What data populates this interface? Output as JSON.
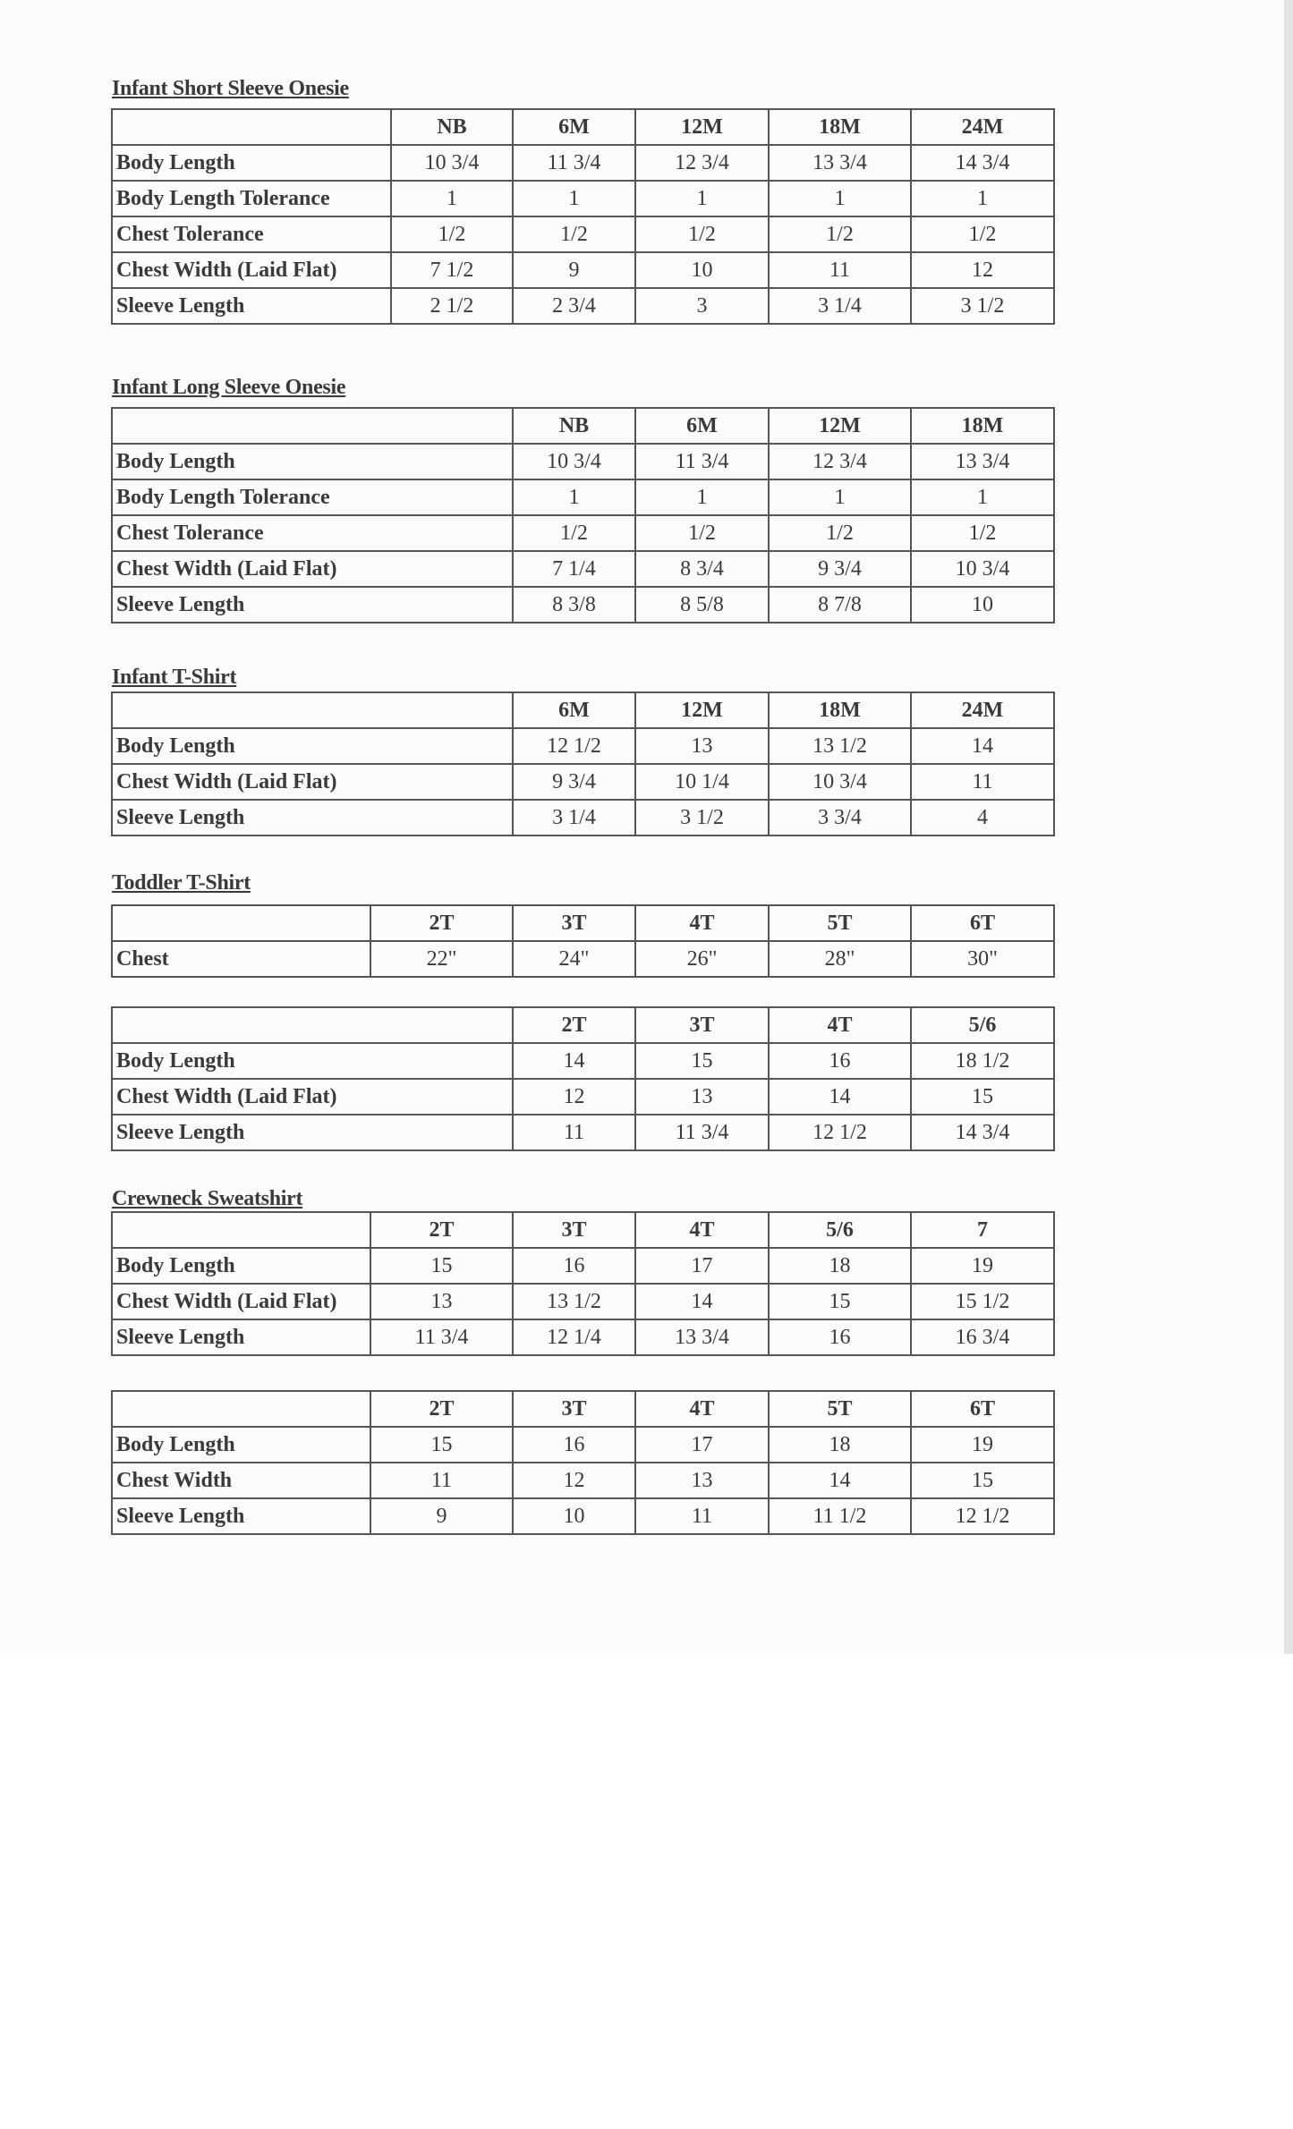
{
  "sections": [
    {
      "title": "Infant Short Sleeve Onesie",
      "tables": [
        {
          "sizes": [
            "NB",
            "6M",
            "12M",
            "18M",
            "24M"
          ],
          "rows": [
            {
              "label": "Body Length",
              "values": [
                "10 3/4",
                "11 3/4",
                "12 3/4",
                "13 3/4",
                "14 3/4"
              ]
            },
            {
              "label": "Body Length Tolerance",
              "values": [
                "1",
                "1",
                "1",
                "1",
                "1"
              ]
            },
            {
              "label": "Chest Tolerance",
              "values": [
                "1/2",
                "1/2",
                "1/2",
                "1/2",
                "1/2"
              ]
            },
            {
              "label": "Chest Width (Laid Flat)",
              "values": [
                "7 1/2",
                "9",
                "10",
                "11",
                "12"
              ]
            },
            {
              "label": "Sleeve Length",
              "values": [
                "2 1/2",
                "2 3/4",
                "3",
                "3 1/4",
                "3 1/2"
              ]
            }
          ]
        }
      ]
    },
    {
      "title": "Infant Long Sleeve Onesie",
      "tables": [
        {
          "sizes": [
            "NB",
            "6M",
            "12M",
            "18M"
          ],
          "rows": [
            {
              "label": "Body Length",
              "values": [
                "10 3/4",
                "11 3/4",
                "12 3/4",
                "13 3/4"
              ]
            },
            {
              "label": "Body Length Tolerance",
              "values": [
                "1",
                "1",
                "1",
                "1"
              ]
            },
            {
              "label": "Chest Tolerance",
              "values": [
                "1/2",
                "1/2",
                "1/2",
                "1/2"
              ]
            },
            {
              "label": "Chest Width (Laid Flat)",
              "values": [
                "7 1/4",
                "8 3/4",
                "9 3/4",
                "10 3/4"
              ]
            },
            {
              "label": "Sleeve Length",
              "values": [
                "8 3/8",
                "8 5/8",
                "8 7/8",
                "10"
              ]
            }
          ]
        }
      ]
    },
    {
      "title": "Infant T-Shirt",
      "tables": [
        {
          "sizes": [
            "6M",
            "12M",
            "18M",
            "24M"
          ],
          "rows": [
            {
              "label": "Body Length",
              "values": [
                "12 1/2",
                "13",
                "13 1/2",
                "14"
              ]
            },
            {
              "label": "Chest Width (Laid Flat)",
              "values": [
                "9 3/4",
                "10 1/4",
                "10 3/4",
                "11"
              ]
            },
            {
              "label": "Sleeve Length",
              "values": [
                "3 1/4",
                "3 1/2",
                "3 3/4",
                "4"
              ]
            }
          ]
        }
      ]
    },
    {
      "title": "Toddler T-Shirt",
      "tables": [
        {
          "sizes": [
            "2T",
            "3T",
            "4T",
            "5T",
            "6T"
          ],
          "rows": [
            {
              "label": "Chest",
              "values": [
                "22\"",
                "24\"",
                "26\"",
                "28\"",
                "30\""
              ]
            }
          ]
        },
        {
          "sizes": [
            "2T",
            "3T",
            "4T",
            "5/6"
          ],
          "rows": [
            {
              "label": "Body Length",
              "values": [
                "14",
                "15",
                "16",
                "18 1/2"
              ]
            },
            {
              "label": "Chest Width (Laid Flat)",
              "values": [
                "12",
                "13",
                "14",
                "15"
              ]
            },
            {
              "label": "Sleeve Length",
              "values": [
                "11",
                "11 3/4",
                "12 1/2",
                "14 3/4"
              ]
            }
          ]
        }
      ]
    },
    {
      "title": "Crewneck Sweatshirt",
      "tables": [
        {
          "sizes": [
            "2T",
            "3T",
            "4T",
            "5/6",
            "7"
          ],
          "rows": [
            {
              "label": "Body Length",
              "values": [
                "15",
                "16",
                "17",
                "18",
                "19"
              ]
            },
            {
              "label": "Chest Width (Laid Flat)",
              "values": [
                "13",
                "13 1/2",
                "14",
                "15",
                "15 1/2"
              ]
            },
            {
              "label": "Sleeve Length",
              "values": [
                "11 3/4",
                "12 1/4",
                "13 3/4",
                "16",
                "16 3/4"
              ]
            }
          ]
        },
        {
          "sizes": [
            "2T",
            "3T",
            "4T",
            "5T",
            "6T"
          ],
          "rows": [
            {
              "label": "Body Length",
              "values": [
                "15",
                "16",
                "17",
                "18",
                "19"
              ]
            },
            {
              "label": "Chest Width",
              "values": [
                "11",
                "12",
                "13",
                "14",
                "15"
              ]
            },
            {
              "label": "Sleeve Length",
              "values": [
                "9",
                "10",
                "11",
                "11 1/2",
                "12 1/2"
              ]
            }
          ]
        }
      ]
    }
  ]
}
